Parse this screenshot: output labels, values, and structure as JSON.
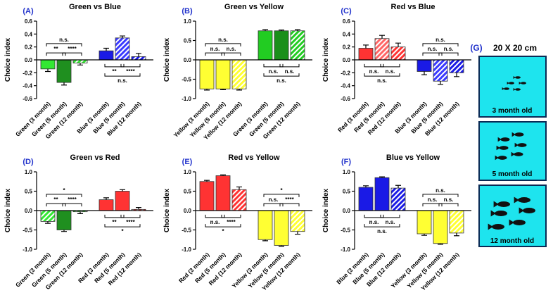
{
  "chart_data": [
    {
      "type": "bar",
      "panel": "(A)",
      "title": "Green vs Blue",
      "ylabel": "Choice index",
      "categories": [
        "Green (3 month)",
        "Green (5 month)",
        "Green (12 month)",
        "Blue (3 month)",
        "Blue (5 month)",
        "Blue (12 month)"
      ],
      "values": [
        -0.14,
        -0.35,
        -0.05,
        0.14,
        0.34,
        0.05
      ],
      "errors": [
        0.04,
        0.04,
        0.03,
        0.04,
        0.03,
        0.05
      ],
      "colors": [
        "#33e833",
        "#1f8f1f",
        "#33e833",
        "#1a1ae6",
        "#3a3aff",
        "#1a1ae6"
      ],
      "hatched": [
        false,
        false,
        true,
        false,
        true,
        true
      ],
      "ylim": [
        -0.6,
        0.6
      ],
      "yticks": [
        -0.6,
        -0.4,
        -0.2,
        {
          "value": 0,
          "label": "0.0"
        },
        0.2,
        0.4,
        0.6
      ],
      "tests": [
        {
          "span": "n.s.",
          "left": "**",
          "right": "****"
        },
        {
          "span": "n.s.",
          "left": "**",
          "right": "****"
        }
      ]
    },
    {
      "type": "bar",
      "panel": "(B)",
      "title": "Green vs Yellow",
      "ylabel": "Choice index",
      "categories": [
        "Yellow (3 month)",
        "Yellow (5 month)",
        "Yellow (12 month)",
        "Green (3 month)",
        "Green (5 month)",
        "Green (12 month)"
      ],
      "values": [
        -0.75,
        -0.75,
        -0.75,
        0.75,
        0.75,
        0.75
      ],
      "errors": [
        0.03,
        0.02,
        0.03,
        0.03,
        0.02,
        0.03
      ],
      "colors": [
        "#ffff33",
        "#ffff33",
        "#ffff33",
        "#22cc22",
        "#1a8f1a",
        "#22cc22"
      ],
      "hatched": [
        false,
        false,
        true,
        false,
        false,
        true
      ],
      "ylim": [
        -1,
        1
      ],
      "yticks": [
        {
          "value": -1,
          "label": "-1.0"
        },
        -0.5,
        {
          "value": 0,
          "label": "0.0"
        },
        0.5,
        {
          "value": 1,
          "label": "1.0"
        }
      ],
      "tests": [
        {
          "span": "n.s.",
          "left": "n.s.",
          "right": "n.s."
        },
        {
          "span": "n.s.",
          "left": "n.s.",
          "right": "n.s."
        }
      ]
    },
    {
      "type": "bar",
      "panel": "(C)",
      "title": "Red vs Blue",
      "ylabel": "Choice index",
      "categories": [
        "Red (3 month)",
        "Red (5 month)",
        "Red (12 month)",
        "Blue (3 month)",
        "Blue (5 month)",
        "Blue (12 month)"
      ],
      "values": [
        0.18,
        0.33,
        0.2,
        -0.18,
        -0.33,
        -0.2
      ],
      "errors": [
        0.05,
        0.05,
        0.06,
        0.05,
        0.05,
        0.06
      ],
      "colors": [
        "#ff3333",
        "#ff6666",
        "#ff3333",
        "#1a1ae6",
        "#3a3aff",
        "#1a1ae6"
      ],
      "hatched": [
        false,
        true,
        true,
        false,
        true,
        true
      ],
      "ylim": [
        -0.6,
        0.6
      ],
      "yticks": [
        -0.6,
        -0.4,
        -0.2,
        {
          "value": 0,
          "label": "0.0"
        },
        0.2,
        0.4,
        0.6
      ],
      "tests": [
        {
          "span": "n.s.",
          "left": "n.s.",
          "right": "n.s."
        },
        {
          "span": "n.s.",
          "left": "n.s.",
          "right": "n.s."
        }
      ]
    },
    {
      "type": "bar",
      "panel": "(D)",
      "title": "Green vs Red",
      "ylabel": "Choice index",
      "categories": [
        "Green (3 month)",
        "Green (5 month)",
        "Green (12 month)",
        "Red (3 month)",
        "Red (5 month)",
        "Red (12 month)"
      ],
      "values": [
        -0.28,
        -0.5,
        -0.03,
        0.28,
        0.5,
        0.03
      ],
      "errors": [
        0.05,
        0.04,
        0.05,
        0.05,
        0.04,
        0.05
      ],
      "colors": [
        "#33e833",
        "#1f8f1f",
        "#33e833",
        "#ff3333",
        "#ff3333",
        "#ff3333"
      ],
      "hatched": [
        true,
        false,
        true,
        false,
        false,
        true
      ],
      "ylim": [
        -1,
        1
      ],
      "yticks": [
        {
          "value": -1,
          "label": "-1.0"
        },
        -0.5,
        {
          "value": 0,
          "label": "0.0"
        },
        0.5,
        {
          "value": 1,
          "label": "1.0"
        }
      ],
      "tests": [
        {
          "span": "*",
          "left": "**",
          "right": "****"
        },
        {
          "span": "*",
          "left": "**",
          "right": "****"
        }
      ]
    },
    {
      "type": "bar",
      "panel": "(E)",
      "title": "Red vs Yellow",
      "ylabel": "Choice index",
      "categories": [
        "Red (3 month)",
        "Red (5 month)",
        "Red (12 month)",
        "Yellow (3 month)",
        "Yellow (5 month)",
        "Yellow (12 month)"
      ],
      "values": [
        0.75,
        0.9,
        0.54,
        -0.75,
        -0.9,
        -0.54
      ],
      "errors": [
        0.03,
        0.02,
        0.07,
        0.03,
        0.02,
        0.07
      ],
      "colors": [
        "#ff3333",
        "#ff3333",
        "#ff3333",
        "#ffff33",
        "#ffff33",
        "#ffff33"
      ],
      "hatched": [
        false,
        false,
        true,
        false,
        false,
        true
      ],
      "ylim": [
        -1,
        1
      ],
      "yticks": [
        {
          "value": -1,
          "label": "-1.0"
        },
        -0.5,
        {
          "value": 0,
          "label": "0.0"
        },
        0.5,
        {
          "value": 1,
          "label": "1.0"
        }
      ],
      "tests": [
        {
          "span": "*",
          "left": "n.s.",
          "right": "****"
        },
        {
          "span": "*",
          "left": "n.s.",
          "right": "****"
        }
      ]
    },
    {
      "type": "bar",
      "panel": "(F)",
      "title": "Blue vs Yellow",
      "ylabel": "Choice index",
      "categories": [
        "Blue (3 month)",
        "Blue (5 month)",
        "Blue (12 month)",
        "Yellow (3 month)",
        "Yellow (5 month)",
        "Yellow (12 month)"
      ],
      "values": [
        0.6,
        0.85,
        0.58,
        -0.6,
        -0.85,
        -0.58
      ],
      "errors": [
        0.04,
        0.02,
        0.07,
        0.04,
        0.02,
        0.07
      ],
      "colors": [
        "#1a1ae6",
        "#1a1ae6",
        "#1a1ae6",
        "#ffff33",
        "#ffff33",
        "#ffff33"
      ],
      "hatched": [
        false,
        false,
        true,
        false,
        false,
        true
      ],
      "ylim": [
        -1,
        1
      ],
      "yticks": [
        {
          "value": -1,
          "label": "-1.0"
        },
        -0.5,
        {
          "value": 0,
          "label": "0.0"
        },
        0.5,
        {
          "value": 1,
          "label": "1.0"
        }
      ],
      "tests": [
        {
          "span": "n.s.",
          "left": "n.s.",
          "right": "n.s."
        },
        {
          "span": "n.s.",
          "left": "n.s.",
          "right": "n.s."
        }
      ]
    }
  ],
  "panel_g": {
    "label": "(G)",
    "title": "20 X 20 cm",
    "boxes": [
      "3 month old",
      "5 month old",
      "12 month old"
    ]
  }
}
